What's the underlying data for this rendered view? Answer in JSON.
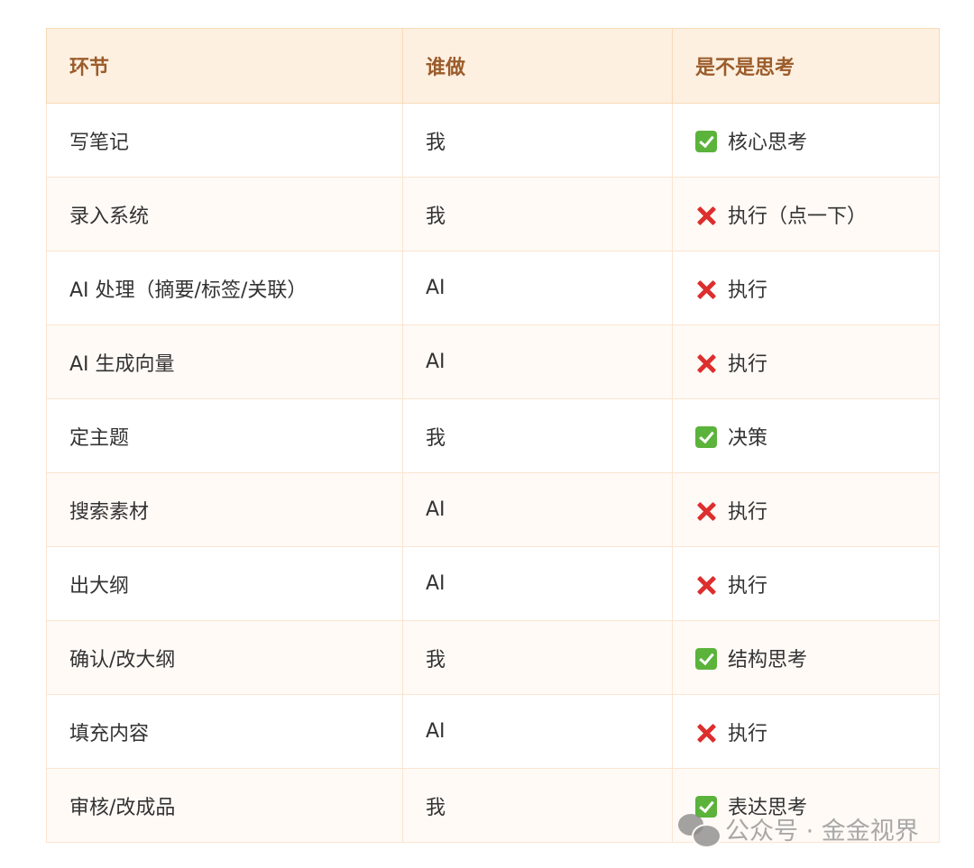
{
  "table": {
    "headers": [
      "环节",
      "谁做",
      "是不是思考"
    ],
    "rows": [
      {
        "step": "写笔记",
        "who": "我",
        "status": "check",
        "thinking": "核心思考"
      },
      {
        "step": "录入系统",
        "who": "我",
        "status": "cross",
        "thinking": "执行（点一下）"
      },
      {
        "step": "AI 处理（摘要/标签/关联）",
        "who": "AI",
        "status": "cross",
        "thinking": "执行"
      },
      {
        "step": "AI 生成向量",
        "who": "AI",
        "status": "cross",
        "thinking": "执行"
      },
      {
        "step": "定主题",
        "who": "我",
        "status": "check",
        "thinking": "决策"
      },
      {
        "step": "搜索素材",
        "who": "AI",
        "status": "cross",
        "thinking": "执行"
      },
      {
        "step": "出大纲",
        "who": "AI",
        "status": "cross",
        "thinking": "执行"
      },
      {
        "step": "确认/改大纲",
        "who": "我",
        "status": "check",
        "thinking": "结构思考"
      },
      {
        "step": "填充内容",
        "who": "AI",
        "status": "cross",
        "thinking": "执行"
      },
      {
        "step": "审核/改成品",
        "who": "我",
        "status": "check",
        "thinking": "表达思考"
      }
    ]
  },
  "icons": {
    "check": "check-mark-button-icon",
    "cross": "cross-mark-icon"
  },
  "colors": {
    "header_bg": "#fdf0e0",
    "header_text": "#9b5c2c",
    "check": "#5bb33b",
    "cross": "#dd2e2e"
  },
  "watermark": "公众号 · 金金视界"
}
